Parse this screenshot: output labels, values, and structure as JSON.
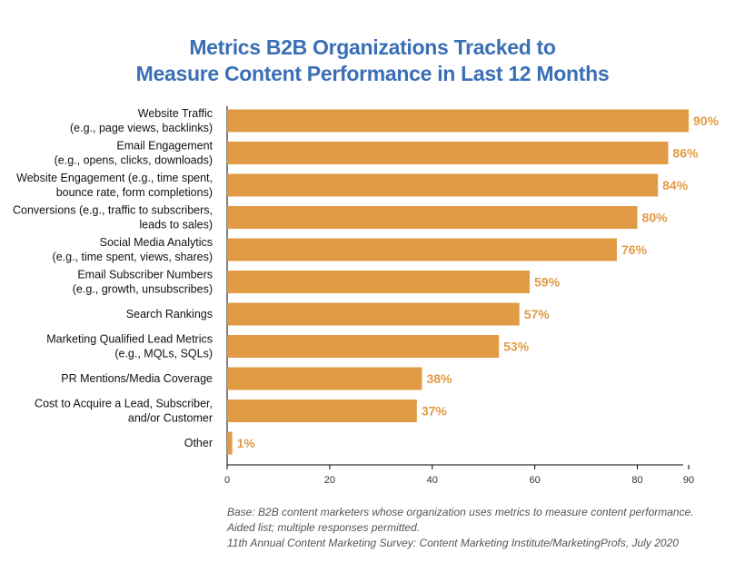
{
  "chart_data": {
    "type": "bar",
    "orientation": "horizontal",
    "title_lines": [
      "Metrics B2B Organizations Tracked to",
      "Measure Content Performance in Last 12 Months"
    ],
    "categories": [
      [
        "Website Traffic",
        "(e.g., page views, backlinks)"
      ],
      [
        "Email Engagement",
        "(e.g., opens, clicks, downloads)"
      ],
      [
        "Website Engagement (e.g., time spent,",
        "bounce rate, form completions)"
      ],
      [
        "Conversions (e.g., traffic to subscribers,",
        "leads to sales)"
      ],
      [
        "Social Media Analytics",
        "(e.g., time spent, views, shares)"
      ],
      [
        "Email Subscriber Numbers",
        "(e.g., growth, unsubscribes)"
      ],
      [
        "Search Rankings"
      ],
      [
        "Marketing Qualified Lead Metrics",
        "(e.g., MQLs, SQLs)"
      ],
      [
        "PR Mentions/Media Coverage"
      ],
      [
        "Cost to Acquire a Lead, Subscriber,",
        "and/or Customer"
      ],
      [
        "Other"
      ]
    ],
    "values": [
      90,
      86,
      84,
      80,
      76,
      59,
      57,
      53,
      38,
      37,
      1
    ],
    "data_labels": [
      "90%",
      "86%",
      "84%",
      "80%",
      "76%",
      "59%",
      "57%",
      "53%",
      "38%",
      "37%",
      "1%"
    ],
    "x_ticks": [
      0,
      20,
      40,
      60,
      80,
      90
    ],
    "xlim": [
      0,
      90
    ],
    "xlabel": "",
    "ylabel": "",
    "grid": false,
    "bar_color": "#e19b45",
    "label_color": "#e19b45",
    "title_color": "#3a6fb5"
  },
  "footnote": {
    "lines": [
      "Base: B2B content marketers whose organization uses metrics to measure content performance.",
      "Aided list; multiple responses permitted.",
      "11th Annual Content Marketing Survey: Content Marketing Institute/MarketingProfs, July 2020"
    ]
  }
}
